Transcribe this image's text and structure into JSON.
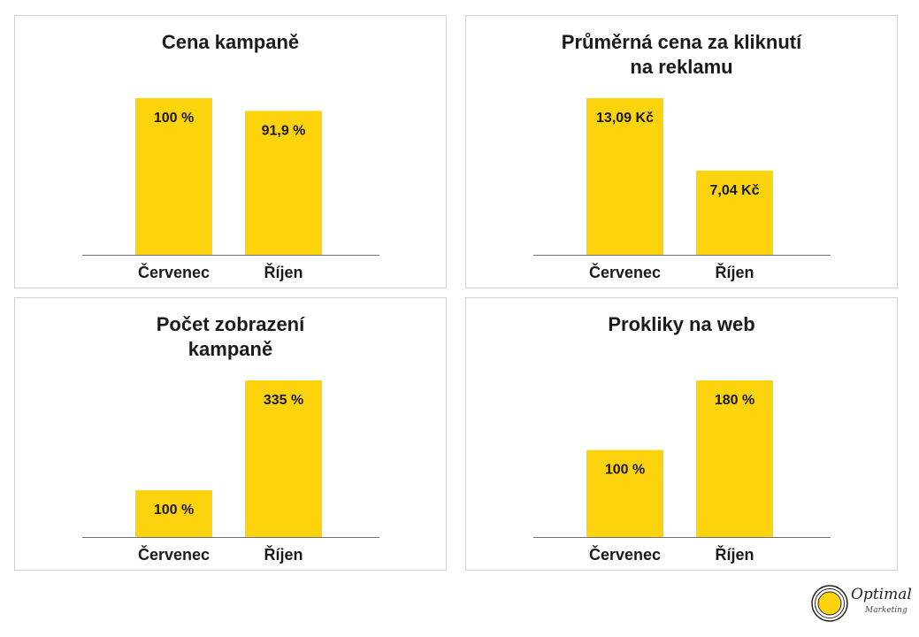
{
  "chart_data": [
    {
      "type": "bar",
      "title": "Cena kampaně",
      "categories": [
        "Červenec",
        "Říjen"
      ],
      "values": [
        100,
        91.9
      ],
      "value_labels": [
        "100 %",
        "91,9 %"
      ],
      "unit": "%",
      "ylim": [
        0,
        100
      ],
      "grid": false
    },
    {
      "type": "bar",
      "title": "Průměrná cena za kliknutí\nna reklamu",
      "categories": [
        "Červenec",
        "Říjen"
      ],
      "values": [
        13.09,
        7.04
      ],
      "value_labels": [
        "13,09 Kč",
        "7,04 Kč"
      ],
      "unit": "Kč",
      "ylim": [
        0,
        13.09
      ],
      "grid": false
    },
    {
      "type": "bar",
      "title": "Počet zobrazení\nkampaně",
      "categories": [
        "Červenec",
        "Říjen"
      ],
      "values": [
        100,
        335
      ],
      "value_labels": [
        "100 %",
        "335 %"
      ],
      "unit": "%",
      "ylim": [
        0,
        335
      ],
      "grid": false
    },
    {
      "type": "bar",
      "title": "Prokliky na web",
      "categories": [
        "Červenec",
        "Říjen"
      ],
      "values": [
        100,
        180
      ],
      "value_labels": [
        "100 %",
        "180 %"
      ],
      "unit": "%",
      "ylim": [
        0,
        180
      ],
      "grid": false
    }
  ],
  "colors": {
    "bar": "#fcd30d",
    "baseline": "#707070",
    "text": "#1a1a1a"
  },
  "logo": {
    "icon": "optimal-marketing-logo-icon",
    "name": "Optimal",
    "sub": "Marketing"
  }
}
